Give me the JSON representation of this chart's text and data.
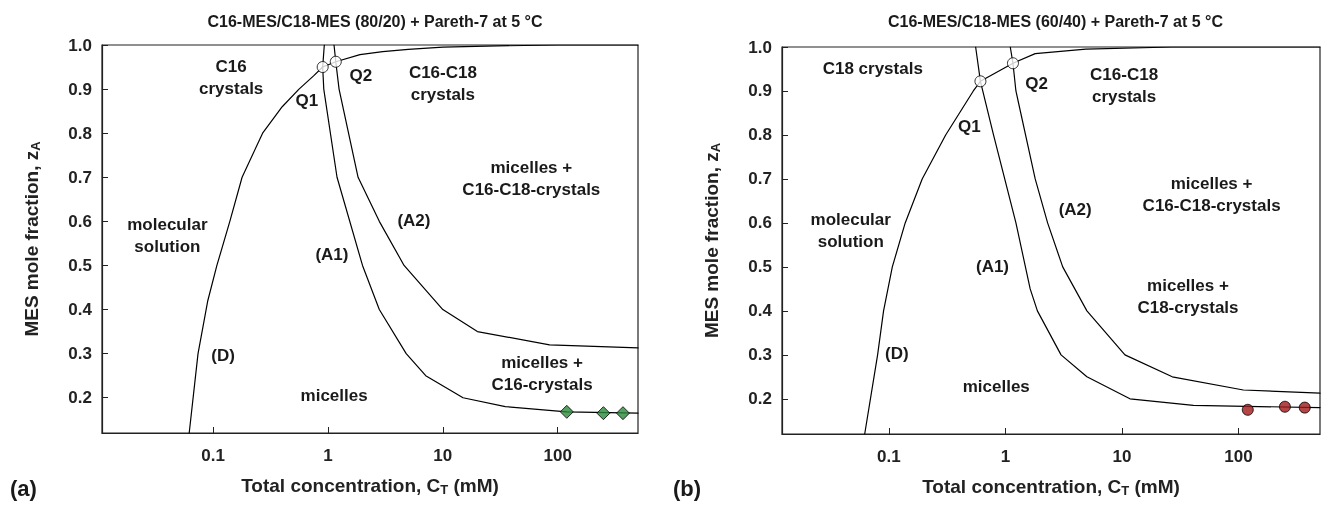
{
  "chart_data": [
    {
      "type": "line",
      "title": "C16-MES/C18-MES (80/20) + Pareth-7 at 5 °C",
      "xlabel": "Total concentration, C$_{T}$ (mM)",
      "ylabel": "MES mole fraction, z$_{A}$",
      "log": "x",
      "xlim": [
        0.0108,
        500
      ],
      "xticks": [
        0.1,
        1,
        10,
        100
      ],
      "ylim": [
        0.12,
        1.0
      ],
      "yticks": [
        0.2,
        0.3,
        0.4,
        0.5,
        0.6,
        0.7,
        0.8,
        0.9,
        {
          "value": 1,
          "label": "1.0"
        }
      ],
      "grid": false,
      "line_style": "solid",
      "series": [
        {
          "color": "#000000",
          "marker": "none",
          "x": [
            0.062,
            0.074,
            0.09,
            0.108,
            0.14,
            0.179,
            0.27,
            0.4,
            0.56,
            0.75,
            0.9
          ],
          "values": [
            0.12,
            0.3,
            0.42,
            0.5,
            0.6,
            0.7,
            0.8,
            0.86,
            0.9,
            0.93,
            0.95
          ]
        },
        {
          "color": "#000000",
          "marker": "none",
          "x": [
            0.9,
            1.17,
            1.9,
            3,
            5,
            10,
            30,
            100,
            500
          ],
          "values": [
            0.95,
            0.962,
            0.978,
            0.985,
            0.99,
            0.995,
            0.998,
            1.0,
            1.0
          ]
        },
        {
          "color": "#000000",
          "marker": "none",
          "x": [
            0.93,
            0.9,
            0.92,
            1.2,
            2.0,
            2.8,
            4.8,
            7.1,
            15,
            35,
            120,
            500
          ],
          "values": [
            1.0,
            0.95,
            0.9,
            0.7,
            0.5,
            0.4,
            0.3,
            0.25,
            0.2,
            0.18,
            0.168,
            0.165
          ]
        },
        {
          "color": "#000000",
          "marker": "none",
          "x": [
            1.13,
            1.17,
            1.25,
            1.83,
            2.8,
            4.6,
            10,
            20,
            85,
            500
          ],
          "values": [
            1.0,
            0.962,
            0.9,
            0.7,
            0.6,
            0.5,
            0.4,
            0.35,
            0.32,
            0.313
          ]
        },
        {
          "type": "scatter",
          "color": "#ffffff",
          "marker": "circle",
          "x": [
            0.9,
            1.17
          ],
          "values": [
            0.95,
            0.962
          ]
        },
        {
          "type": "scatter",
          "color": "#2a8a3a",
          "marker": "diamond",
          "x": [
            120,
            250,
            370
          ],
          "values": [
            0.168,
            0.165,
            0.165
          ]
        }
      ],
      "annotations": [
        "C16\ncrystals",
        "Q1",
        "Q2",
        "C16-C18\ncrystals",
        "micelles +\nC16-C18-crystals",
        "(A2)",
        "molecular\nsolution",
        "(A1)",
        "(D)",
        "micelles",
        "micelles +\nC16-crystals",
        "(a)"
      ]
    },
    {
      "type": "line",
      "title": "C16-MES/C18-MES (60/40) + Pareth-7 at 5 °C",
      "xlabel": "Total concentration, C$_{T}$ (mM)",
      "ylabel": "MES mole fraction, z$_{A}$",
      "log": "x",
      "xlim": [
        0.0121,
        500
      ],
      "xticks": [
        0.1,
        1,
        10,
        100
      ],
      "ylim": [
        0.12,
        1.0
      ],
      "yticks": [
        0.2,
        0.3,
        0.4,
        0.5,
        0.6,
        0.7,
        0.8,
        0.9,
        {
          "value": 1,
          "label": "1.0"
        }
      ],
      "grid": false,
      "line_style": "solid",
      "series": [
        {
          "color": "#000000",
          "marker": "none",
          "x": [
            0.062,
            0.08,
            0.09,
            0.107,
            0.138,
            0.193,
            0.307,
            0.53,
            0.61
          ],
          "values": [
            0.12,
            0.3,
            0.4,
            0.5,
            0.6,
            0.7,
            0.8,
            0.9,
            0.922
          ]
        },
        {
          "color": "#000000",
          "marker": "none",
          "x": [
            0.61,
            1.16,
            1.8,
            4.9,
            27,
            500
          ],
          "values": [
            0.922,
            0.963,
            0.985,
            0.995,
            1.0,
            1.0
          ]
        },
        {
          "color": "#000000",
          "marker": "none",
          "x": [
            0.555,
            0.61,
            0.79,
            1.23,
            1.63,
            1.88,
            3.0,
            5.0,
            11.7,
            41,
            500
          ],
          "values": [
            1.0,
            0.922,
            0.8,
            0.6,
            0.45,
            0.4,
            0.3,
            0.25,
            0.2,
            0.185,
            0.18
          ]
        },
        {
          "color": "#000000",
          "marker": "none",
          "x": [
            1.1,
            1.16,
            1.23,
            1.8,
            2.3,
            3.1,
            5.0,
            10.6,
            27,
            110,
            500
          ],
          "values": [
            1.0,
            0.963,
            0.9,
            0.7,
            0.6,
            0.5,
            0.4,
            0.3,
            0.25,
            0.22,
            0.213
          ]
        },
        {
          "type": "scatter",
          "color": "#ffffff",
          "marker": "circle",
          "x": [
            0.61,
            1.16
          ],
          "values": [
            0.922,
            0.963
          ]
        },
        {
          "type": "scatter",
          "color": "#a01818",
          "marker": "circle",
          "x": [
            120,
            250,
            370
          ],
          "values": [
            0.175,
            0.182,
            0.18
          ]
        }
      ],
      "annotations": [
        "C18 crystals",
        "Q1",
        "Q2",
        "C16-C18\ncrystals",
        "micelles +\nC16-C18-crystals",
        "(A2)",
        "molecular\nsolution",
        "(A1)",
        "micelles +\nC18-crystals",
        "(D)",
        "micelles",
        "(b)"
      ]
    }
  ]
}
